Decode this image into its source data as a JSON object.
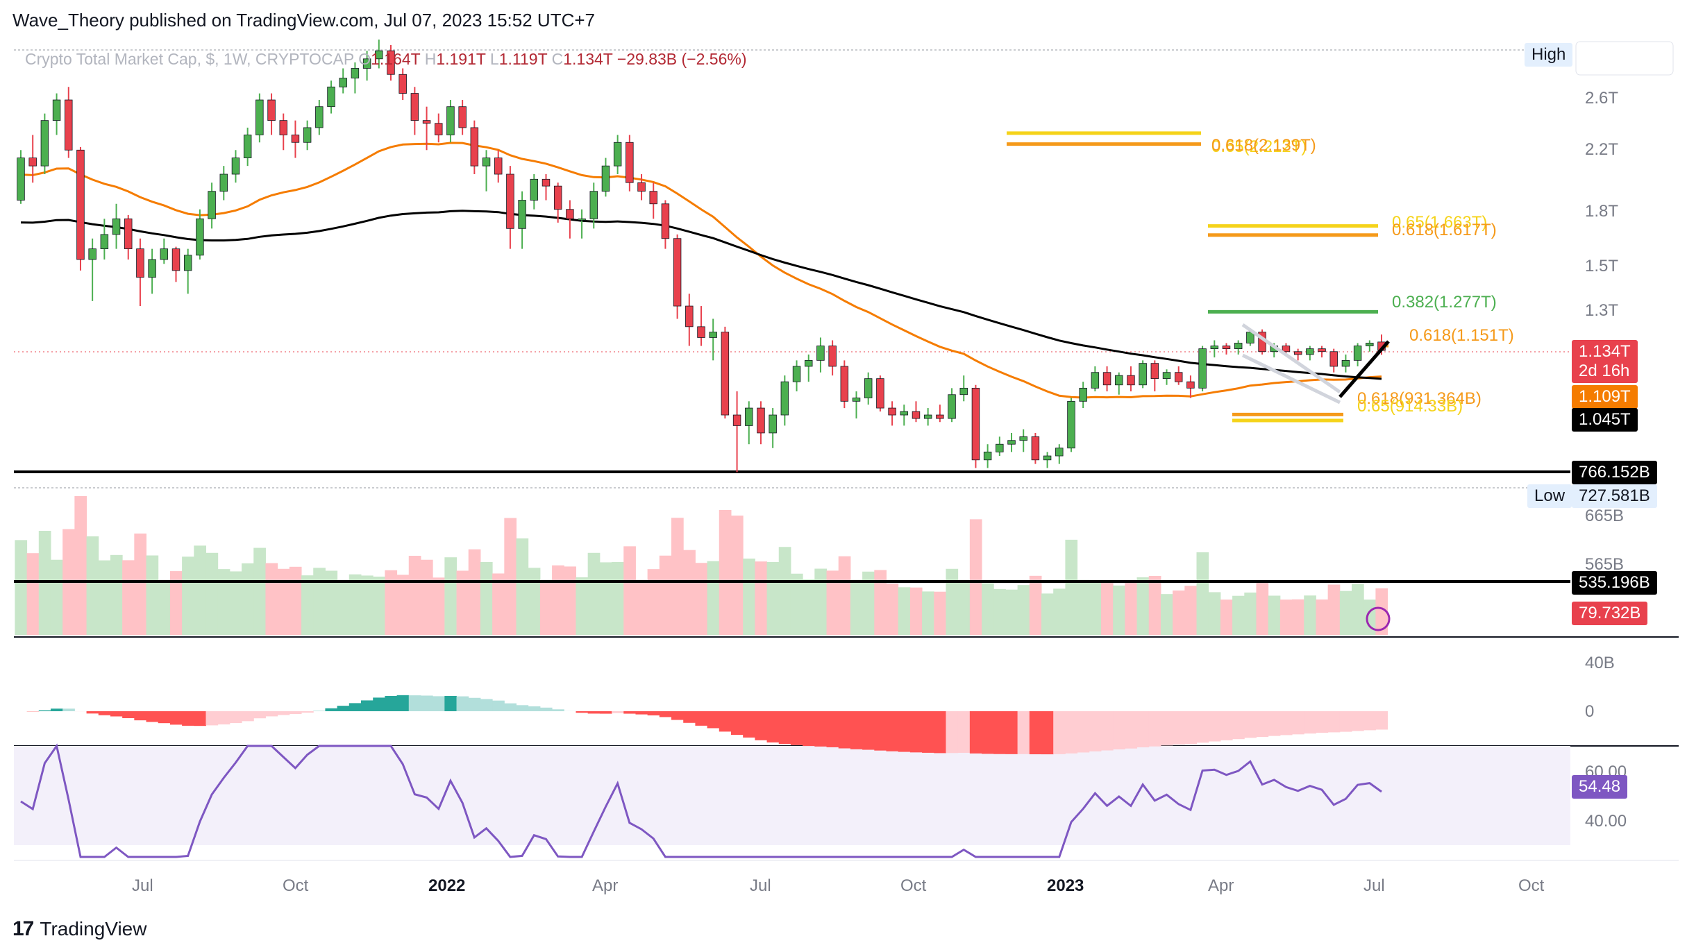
{
  "header": {
    "published": "Wave_Theory published on TradingView.com, Jul 07, 2023 15:52 UTC+7"
  },
  "symbol": {
    "name": "Crypto Total Market Cap, $, 1W, CRYPTOCAP",
    "o_key": "O",
    "o": "1.164T",
    "h_key": "H",
    "h": "1.191T",
    "l_key": "L",
    "l": "1.119T",
    "c_key": "C",
    "c": "1.134T",
    "change": "−29.83B (−2.56%)"
  },
  "price_axis": {
    "ticks": [
      "2.6T",
      "2.2T",
      "1.8T",
      "1.5T",
      "1.3T",
      "665B",
      "565B",
      "40B",
      "0",
      "40.00"
    ],
    "rsi_top_tick": "60.00",
    "high_label": "High",
    "low_label": "Low",
    "current_price": "1.134T",
    "countdown": "2d 16h",
    "ema_value": "1.109T",
    "sma_value": "1.045T",
    "support_1": "766.152B",
    "low_value": "727.581B",
    "volume_line": "535.196B",
    "volume_value": "79.732B",
    "rsi_value": "54.48"
  },
  "fib_labels": {
    "a1": "0.65(2.212T)",
    "a2": "0.618(2.139T)",
    "b1": "0.65(1.663T)",
    "b2": "0.618(1.617T)",
    "c1": "0.382(1.277T)",
    "d1": "0.618(1.151T)",
    "e1": "0.618(931.364B)",
    "e2": "0.65(914.33B)"
  },
  "time_axis": [
    "Jul",
    "Oct",
    "2022",
    "Apr",
    "Jul",
    "Oct",
    "2023",
    "Apr",
    "Jul",
    "Oct"
  ],
  "footer": {
    "brand": "TradingView"
  },
  "colors": {
    "up": "#4caf50",
    "down": "#e8414d",
    "ema": "#f57c00",
    "sma": "#000000",
    "fib_gold": "#f5d31a",
    "fib_orange": "#f59a1a",
    "fib_green": "#4caf50",
    "macd_up_strong": "#26a69a",
    "macd_up_weak": "#b2dfdb",
    "macd_down_strong": "#ff5252",
    "macd_down_weak": "#ffcdd2",
    "rsi": "#7e57c2",
    "vol_up": "#c8e6c9",
    "vol_down": "#ffc2c6"
  },
  "chart_data": [
    {
      "type": "candlestick",
      "title": "Crypto Total Market Cap, $, 1W, CRYPTOCAP",
      "x_ticks": [
        "Jul",
        "Oct",
        "2022",
        "Apr",
        "Jul",
        "Oct",
        "2023",
        "Apr",
        "Jul",
        "Oct"
      ],
      "y_scale": "log",
      "y_unit": "T",
      "ylim": [
        0.72,
        2.9
      ],
      "ohlc": [
        [
          1.8,
          2.1,
          1.78,
          2.05
        ],
        [
          2.05,
          2.2,
          1.9,
          2.0
        ],
        [
          2.0,
          2.35,
          1.95,
          2.3
        ],
        [
          2.3,
          2.5,
          2.2,
          2.45
        ],
        [
          2.45,
          2.55,
          2.05,
          2.1
        ],
        [
          2.1,
          2.12,
          1.45,
          1.5
        ],
        [
          1.5,
          1.6,
          1.32,
          1.55
        ],
        [
          1.55,
          1.7,
          1.5,
          1.62
        ],
        [
          1.62,
          1.78,
          1.55,
          1.7
        ],
        [
          1.7,
          1.72,
          1.5,
          1.55
        ],
        [
          1.55,
          1.6,
          1.3,
          1.42
        ],
        [
          1.42,
          1.55,
          1.35,
          1.5
        ],
        [
          1.5,
          1.6,
          1.48,
          1.55
        ],
        [
          1.55,
          1.56,
          1.4,
          1.45
        ],
        [
          1.45,
          1.55,
          1.35,
          1.52
        ],
        [
          1.52,
          1.75,
          1.5,
          1.7
        ],
        [
          1.7,
          1.9,
          1.65,
          1.85
        ],
        [
          1.85,
          2.0,
          1.8,
          1.95
        ],
        [
          1.95,
          2.1,
          1.9,
          2.05
        ],
        [
          2.05,
          2.25,
          2.0,
          2.2
        ],
        [
          2.2,
          2.5,
          2.15,
          2.45
        ],
        [
          2.45,
          2.5,
          2.2,
          2.3
        ],
        [
          2.3,
          2.35,
          2.1,
          2.2
        ],
        [
          2.2,
          2.3,
          2.05,
          2.15
        ],
        [
          2.15,
          2.3,
          2.1,
          2.25
        ],
        [
          2.25,
          2.45,
          2.2,
          2.4
        ],
        [
          2.4,
          2.6,
          2.35,
          2.55
        ],
        [
          2.55,
          2.7,
          2.5,
          2.62
        ],
        [
          2.62,
          2.75,
          2.5,
          2.7
        ],
        [
          2.7,
          2.85,
          2.6,
          2.78
        ],
        [
          2.78,
          2.95,
          2.7,
          2.85
        ],
        [
          2.85,
          2.9,
          2.6,
          2.65
        ],
        [
          2.65,
          2.7,
          2.45,
          2.5
        ],
        [
          2.5,
          2.55,
          2.2,
          2.3
        ],
        [
          2.3,
          2.4,
          2.1,
          2.28
        ],
        [
          2.28,
          2.35,
          2.15,
          2.2
        ],
        [
          2.2,
          2.45,
          2.15,
          2.4
        ],
        [
          2.4,
          2.45,
          2.2,
          2.25
        ],
        [
          2.25,
          2.3,
          1.95,
          2.0
        ],
        [
          2.0,
          2.1,
          1.85,
          2.05
        ],
        [
          2.05,
          2.1,
          1.9,
          1.95
        ],
        [
          1.95,
          2.0,
          1.55,
          1.65
        ],
        [
          1.65,
          1.85,
          1.55,
          1.8
        ],
        [
          1.8,
          1.95,
          1.75,
          1.92
        ],
        [
          1.92,
          1.95,
          1.8,
          1.88
        ],
        [
          1.88,
          1.9,
          1.68,
          1.75
        ],
        [
          1.75,
          1.8,
          1.6,
          1.7
        ],
        [
          1.7,
          1.75,
          1.6,
          1.7
        ],
        [
          1.7,
          1.9,
          1.65,
          1.85
        ],
        [
          1.85,
          2.05,
          1.82,
          2.0
        ],
        [
          2.0,
          2.2,
          1.95,
          2.15
        ],
        [
          2.15,
          2.2,
          1.85,
          1.9
        ],
        [
          1.9,
          1.95,
          1.8,
          1.85
        ],
        [
          1.85,
          1.9,
          1.7,
          1.78
        ],
        [
          1.78,
          1.8,
          1.55,
          1.6
        ],
        [
          1.6,
          1.62,
          1.25,
          1.3
        ],
        [
          1.3,
          1.35,
          1.15,
          1.22
        ],
        [
          1.22,
          1.3,
          1.15,
          1.18
        ],
        [
          1.18,
          1.25,
          1.1,
          1.2
        ],
        [
          1.2,
          1.22,
          0.92,
          0.93
        ],
        [
          0.93,
          1.0,
          0.78,
          0.9
        ],
        [
          0.9,
          0.97,
          0.85,
          0.95
        ],
        [
          0.95,
          0.97,
          0.85,
          0.88
        ],
        [
          0.88,
          0.95,
          0.84,
          0.93
        ],
        [
          0.93,
          1.05,
          0.9,
          1.03
        ],
        [
          1.03,
          1.1,
          1.0,
          1.08
        ],
        [
          1.08,
          1.12,
          1.03,
          1.1
        ],
        [
          1.1,
          1.18,
          1.06,
          1.15
        ],
        [
          1.15,
          1.17,
          1.05,
          1.08
        ],
        [
          1.08,
          1.1,
          0.95,
          0.97
        ],
        [
          0.97,
          1.0,
          0.92,
          0.98
        ],
        [
          0.98,
          1.06,
          0.96,
          1.04
        ],
        [
          1.04,
          1.05,
          0.94,
          0.95
        ],
        [
          0.95,
          0.97,
          0.9,
          0.93
        ],
        [
          0.93,
          0.96,
          0.9,
          0.94
        ],
        [
          0.94,
          0.97,
          0.91,
          0.92
        ],
        [
          0.92,
          0.95,
          0.9,
          0.93
        ],
        [
          0.93,
          0.96,
          0.91,
          0.92
        ],
        [
          0.92,
          1.01,
          0.91,
          0.99
        ],
        [
          0.99,
          1.05,
          0.97,
          1.01
        ],
        [
          1.01,
          1.02,
          0.79,
          0.81
        ],
        [
          0.81,
          0.85,
          0.79,
          0.83
        ],
        [
          0.83,
          0.87,
          0.82,
          0.85
        ],
        [
          0.85,
          0.88,
          0.83,
          0.86
        ],
        [
          0.86,
          0.89,
          0.83,
          0.87
        ],
        [
          0.87,
          0.88,
          0.8,
          0.81
        ],
        [
          0.81,
          0.83,
          0.79,
          0.82
        ],
        [
          0.82,
          0.85,
          0.8,
          0.84
        ],
        [
          0.84,
          0.98,
          0.83,
          0.97
        ],
        [
          0.97,
          1.03,
          0.95,
          1.01
        ],
        [
          1.01,
          1.08,
          1.0,
          1.06
        ],
        [
          1.06,
          1.08,
          1.0,
          1.02
        ],
        [
          1.02,
          1.06,
          0.99,
          1.05
        ],
        [
          1.05,
          1.08,
          1.0,
          1.02
        ],
        [
          1.02,
          1.1,
          1.01,
          1.09
        ],
        [
          1.09,
          1.1,
          1.0,
          1.04
        ],
        [
          1.04,
          1.07,
          1.02,
          1.06
        ],
        [
          1.06,
          1.08,
          1.02,
          1.03
        ],
        [
          1.03,
          1.05,
          0.98,
          1.01
        ],
        [
          1.01,
          1.15,
          1.0,
          1.14
        ],
        [
          1.14,
          1.17,
          1.11,
          1.15
        ],
        [
          1.15,
          1.16,
          1.12,
          1.14
        ],
        [
          1.14,
          1.17,
          1.12,
          1.16
        ],
        [
          1.16,
          1.21,
          1.15,
          1.2
        ],
        [
          1.2,
          1.21,
          1.12,
          1.13
        ],
        [
          1.13,
          1.16,
          1.11,
          1.15
        ],
        [
          1.15,
          1.16,
          1.12,
          1.13
        ],
        [
          1.13,
          1.14,
          1.1,
          1.12
        ],
        [
          1.12,
          1.15,
          1.1,
          1.14
        ],
        [
          1.14,
          1.15,
          1.11,
          1.13
        ],
        [
          1.13,
          1.14,
          1.06,
          1.08
        ],
        [
          1.08,
          1.12,
          1.06,
          1.1
        ],
        [
          1.1,
          1.16,
          1.08,
          1.15
        ],
        [
          1.15,
          1.17,
          1.13,
          1.16
        ],
        [
          1.164,
          1.191,
          1.119,
          1.134
        ]
      ],
      "ema_value": 1.109,
      "sma_value": 1.045,
      "horizontal_levels": [
        0.766152,
        0.727581
      ],
      "fib_levels": [
        {
          "label": "0.65(2.212T)",
          "value": 2.212
        },
        {
          "label": "0.618(2.139T)",
          "value": 2.139
        },
        {
          "label": "0.65(1.663T)",
          "value": 1.663
        },
        {
          "label": "0.618(1.617T)",
          "value": 1.617
        },
        {
          "label": "0.382(1.277T)",
          "value": 1.277
        },
        {
          "label": "0.618(1.151T)",
          "value": 1.151
        },
        {
          "label": "0.618(931.364B)",
          "value": 0.931364
        },
        {
          "label": "0.65(914.33B)",
          "value": 0.91433
        }
      ]
    },
    {
      "type": "area",
      "title": "Volume",
      "last_value": "79.732B",
      "ylim": [
        535,
        760
      ],
      "unit": "B"
    },
    {
      "type": "bar",
      "title": "MACD",
      "ylim": [
        -40,
        60
      ],
      "ticks": [
        "40B",
        "0"
      ]
    },
    {
      "type": "line",
      "title": "RSI",
      "last_value": 54.48,
      "ylim": [
        30,
        70
      ]
    }
  ]
}
